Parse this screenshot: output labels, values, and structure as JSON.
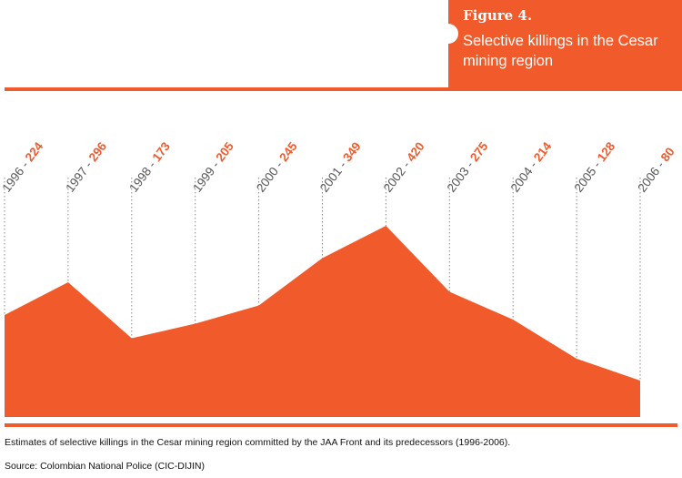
{
  "figure": {
    "label": "Figure 4.",
    "title": "Selective killings in the Cesar mining region"
  },
  "caption": "Estimates of selective killings in the Cesar mining region committed by the JAA Front and its predecessors (1996-2006).",
  "source": "Source: Colombian National Police (CIC-DIJIN)",
  "colors": {
    "accent": "#f15a2b",
    "year_text": "#555555",
    "guide": "#888888"
  },
  "chart_data": {
    "type": "area",
    "title": "Selective killings in the Cesar mining region",
    "xlabel": "",
    "ylabel": "",
    "x": [
      "1996",
      "1997",
      "1998",
      "1999",
      "2000",
      "2001",
      "2002",
      "2003",
      "2004",
      "2005",
      "2006"
    ],
    "values": [
      224,
      296,
      173,
      205,
      245,
      349,
      420,
      275,
      214,
      128,
      80
    ],
    "ylim": [
      0,
      420
    ],
    "label_separator": " - ",
    "grid": false,
    "legend": "none"
  }
}
